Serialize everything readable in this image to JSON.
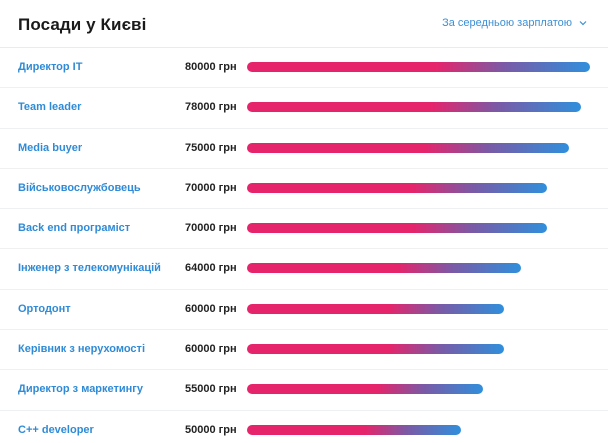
{
  "header": {
    "title": "Посади у Києві",
    "sort_label": "За середньою зарплатою"
  },
  "colors": {
    "link": "#2f8bd6",
    "bar_start": "#e6246b",
    "bar_end": "#2f8fdc"
  },
  "rows": [
    {
      "name": "Директор IT",
      "salary_label": "80000 грн",
      "salary": 80000
    },
    {
      "name": "Team leader",
      "salary_label": "78000 грн",
      "salary": 78000
    },
    {
      "name": "Media buyer",
      "salary_label": "75000 грн",
      "salary": 75000
    },
    {
      "name": "Військовослужбовець",
      "salary_label": "70000 грн",
      "salary": 70000
    },
    {
      "name": "Back end програміст",
      "salary_label": "70000 грн",
      "salary": 70000
    },
    {
      "name": "Інженер з телекомунікацій",
      "salary_label": "64000 грн",
      "salary": 64000
    },
    {
      "name": "Ортодонт",
      "salary_label": "60000 грн",
      "salary": 60000
    },
    {
      "name": "Керівник з нерухомості",
      "salary_label": "60000 грн",
      "salary": 60000
    },
    {
      "name": "Директор з маркетингу",
      "salary_label": "55000 грн",
      "salary": 55000
    },
    {
      "name": "C++ developer",
      "salary_label": "50000 грн",
      "salary": 50000
    }
  ]
}
